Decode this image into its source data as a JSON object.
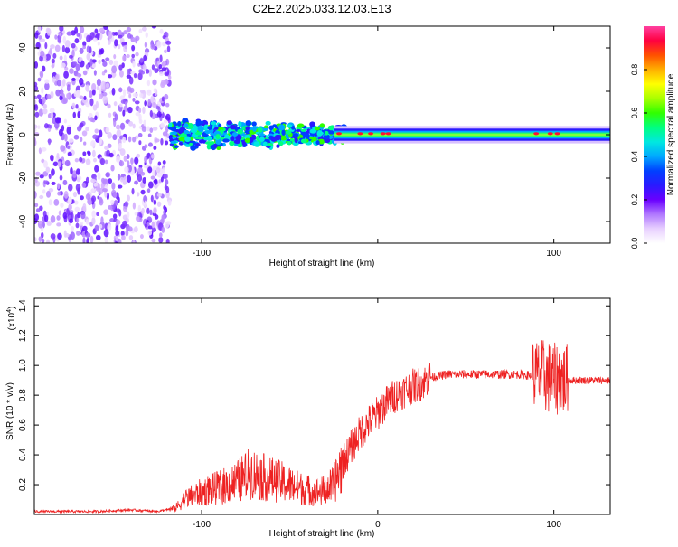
{
  "chart_data": [
    {
      "type": "heatmap",
      "title": "C2E2.2025.033.12.03.E13",
      "xlabel": "Height of straight line (km)",
      "ylabel": "Frequency (Hz)",
      "xlim": [
        -195,
        132
      ],
      "ylim": [
        -50,
        50
      ],
      "xticks": [
        -100,
        0,
        100
      ],
      "xtick_labels": [
        "-100",
        "",
        "100"
      ],
      "yticks": [
        -40,
        -20,
        0,
        20,
        40
      ],
      "ytick_labels": [
        "-40",
        "-20",
        "0",
        "20",
        "40"
      ],
      "colorbar": {
        "label": "Normalized spectral amplitude",
        "range": [
          0,
          1
        ],
        "ticks": [
          0.0,
          0.2,
          0.4,
          0.6,
          0.8
        ],
        "tick_labels": [
          "0.0",
          "0.2",
          "0.4",
          "0.6",
          "0.8"
        ],
        "colors": [
          "#ffffff",
          "#e8d0ff",
          "#b078ff",
          "#6a00ff",
          "#2a1aff",
          "#0040ff",
          "#00a8ff",
          "#00e8e0",
          "#00ff80",
          "#30ff00",
          "#a8ff00",
          "#ffff00",
          "#ffb000",
          "#ff5000",
          "#ff0040",
          "#ff40a0"
        ]
      },
      "grid": false
    },
    {
      "type": "line",
      "xlabel": "Height of straight line (km)",
      "ylabel": "SNR (10 * v/v)",
      "y_multiplier_label": "(x10",
      "y_multiplier_exp": "4",
      "xlim": [
        -195,
        132
      ],
      "ylim": [
        0.0,
        1.45
      ],
      "xticks": [
        -100,
        0,
        100
      ],
      "xtick_labels": [
        "-100",
        "0",
        "100"
      ],
      "yticks": [
        0.2,
        0.4,
        0.6,
        0.8,
        1.0,
        1.2,
        1.4
      ],
      "ytick_labels": [
        "0.2",
        "0.4",
        "0.6",
        "0.8",
        "1.0",
        "1.2",
        "1.4"
      ],
      "series": [
        {
          "color": "#ee2222",
          "x": [
            -195,
            -180,
            -160,
            -140,
            -125,
            -115,
            -110,
            -100,
            -90,
            -80,
            -72,
            -65,
            -55,
            -45,
            -35,
            -30,
            -25,
            -20,
            -15,
            -10,
            -5,
            0,
            5,
            10,
            15,
            20,
            25,
            30,
            40,
            50,
            60,
            70,
            80,
            90,
            95,
            100,
            103,
            106,
            110,
            120,
            132
          ],
          "y": [
            0.02,
            0.02,
            0.02,
            0.03,
            0.02,
            0.04,
            0.1,
            0.15,
            0.18,
            0.22,
            0.28,
            0.25,
            0.22,
            0.18,
            0.15,
            0.16,
            0.2,
            0.35,
            0.45,
            0.55,
            0.62,
            0.68,
            0.75,
            0.8,
            0.83,
            0.86,
            0.88,
            0.92,
            0.94,
            0.94,
            0.94,
            0.94,
            0.94,
            0.93,
            0.93,
            0.9,
            0.92,
            0.9,
            0.9,
            0.9,
            0.9
          ]
        }
      ],
      "grid": false
    }
  ]
}
